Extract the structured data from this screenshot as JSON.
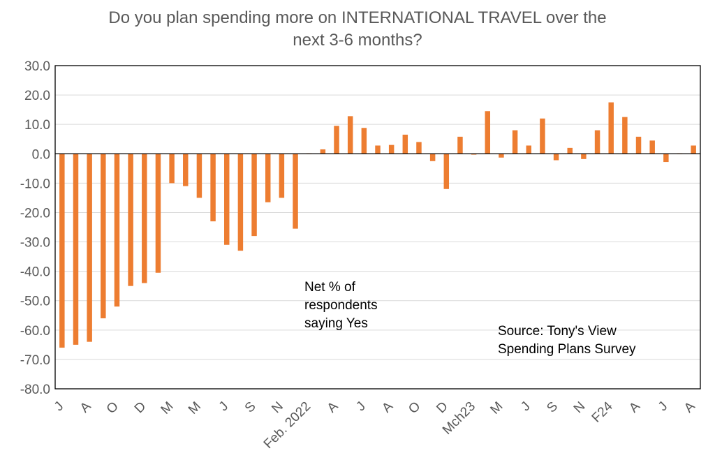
{
  "chart_data": {
    "type": "bar",
    "title_lines": [
      "Do you plan spending more on INTERNATIONAL TRAVEL over the",
      "next 3-6 months?"
    ],
    "xlabel": "",
    "ylabel": "",
    "ylim": [
      -80,
      30
    ],
    "ytick_step": 10,
    "yticks": [
      "30.0",
      "20.0",
      "10.0",
      "0.0",
      "-10.0",
      "-20.0",
      "-30.0",
      "-40.0",
      "-50.0",
      "-60.0",
      "-70.0",
      "-80.0"
    ],
    "grid": true,
    "bar_color": "#ED7D31",
    "categories": [
      "J",
      "",
      "A",
      "",
      "O",
      "",
      "D",
      "",
      "M",
      "",
      "M",
      "",
      "J",
      "",
      "S",
      "",
      "N",
      "",
      "Feb. 2022",
      "",
      "A",
      "",
      "J",
      "",
      "A",
      "",
      "O",
      "",
      "D",
      "",
      "Mch23",
      "",
      "M",
      "",
      "J",
      "",
      "S",
      "",
      "N",
      "",
      "F24",
      "",
      "A",
      "",
      "J",
      "",
      "A"
    ],
    "values": [
      -66,
      -65,
      -64,
      -56,
      -52,
      -45,
      -44,
      -40.5,
      -10,
      -11,
      -15,
      -23,
      -31,
      -33,
      -28,
      -16.5,
      -15,
      -25.5,
      0,
      1.5,
      9.5,
      12.8,
      8.8,
      2.8,
      3,
      6.5,
      4,
      -2.5,
      -12,
      5.8,
      -0.3,
      14.5,
      -1.3,
      8,
      2.8,
      12,
      -2.2,
      2,
      -1.8,
      8,
      17.5,
      12.5,
      5.8,
      4.5,
      -2.8,
      0.2,
      2.8
    ],
    "annotations": [
      {
        "lines": [
          "Net % of",
          "respondents",
          "saying Yes"
        ]
      },
      {
        "lines": [
          "Source: Tony's View",
          "Spending Plans Survey"
        ]
      }
    ]
  }
}
